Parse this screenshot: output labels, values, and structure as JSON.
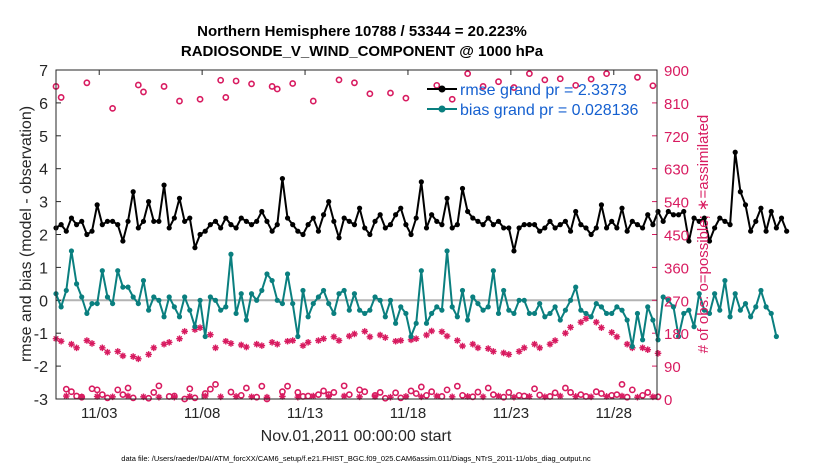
{
  "chart_data": {
    "type": "line",
    "title_line1": "Northern Hemisphere 10788 / 53344 = 20.223%",
    "title_line2": "RADIOSONDE_V_WIND_COMPONENT @ 1000 hPa",
    "xlabel": "Nov.01,2011 00:00:00 start",
    "ylabel_left": "rmse and bias (model - observation)",
    "ylabel_right": "# of obs: o=possible; ∗=assimilated",
    "footer": "data file: /Users/raeder/DAI/ATM_forcXX/CAM6_setup/f.e21.FHIST_BGC.f09_025.CAM6assim.011/Diags_NTrS_2011-11/obs_diag_output.nc",
    "xlim_days": [
      0.9,
      30.1
    ],
    "x_ticks": [
      {
        "day": 3,
        "label": "11/03"
      },
      {
        "day": 8,
        "label": "11/08"
      },
      {
        "day": 13,
        "label": "11/13"
      },
      {
        "day": 18,
        "label": "11/18"
      },
      {
        "day": 23,
        "label": "11/23"
      },
      {
        "day": 28,
        "label": "11/28"
      }
    ],
    "ylim_left": [
      -3,
      7
    ],
    "yticks_left": [
      "-3",
      "-2",
      "-1",
      "0",
      "1",
      "2",
      "3",
      "4",
      "5",
      "6",
      "7"
    ],
    "ylim_right": [
      0,
      900
    ],
    "yticks_right": [
      "0",
      "90",
      "180",
      "270",
      "360",
      "450",
      "540",
      "630",
      "720",
      "810",
      "900"
    ],
    "colors": {
      "rmse": "#000000",
      "bias": "#0a7f7f",
      "obs": "#d81b60",
      "zero_line": "#b3b3b3",
      "legend_text": "#1560d0"
    },
    "legend": {
      "placement": "top-right",
      "entries": [
        {
          "label": "rmse grand pr = 2.3373",
          "series": "rmse"
        },
        {
          "label": "bias grand pr = 0.028136",
          "series": "bias"
        }
      ]
    },
    "x_start_day": 0.9,
    "x_step_day": 0.25,
    "series": [
      {
        "name": "rmse",
        "axis": "left",
        "values": [
          2.2,
          2.3,
          2.1,
          2.5,
          2.3,
          2.4,
          2.0,
          2.1,
          2.9,
          2.3,
          2.4,
          2.4,
          2.3,
          1.8,
          2.4,
          3.3,
          2.2,
          2.4,
          3.0,
          2.4,
          2.4,
          3.5,
          2.2,
          2.5,
          3.1,
          2.4,
          2.5,
          1.6,
          2.0,
          2.1,
          2.3,
          2.4,
          2.2,
          2.5,
          2.3,
          2.2,
          2.5,
          2.4,
          2.3,
          2.4,
          2.7,
          2.4,
          2.1,
          2.3,
          3.7,
          2.5,
          2.3,
          2.1,
          2.0,
          2.3,
          2.5,
          2.1,
          2.6,
          3.0,
          2.4,
          1.9,
          2.5,
          2.4,
          2.3,
          2.8,
          2.2,
          2.0,
          2.4,
          2.6,
          2.2,
          2.3,
          2.6,
          2.8,
          2.3,
          2.0,
          2.5,
          3.6,
          2.2,
          2.6,
          2.4,
          2.3,
          3.1,
          2.2,
          2.3,
          3.4,
          2.7,
          2.5,
          2.4,
          2.3,
          2.5,
          2.3,
          2.4,
          2.2,
          2.2,
          1.5,
          2.2,
          2.3,
          2.3,
          2.3,
          2.1,
          2.2,
          2.4,
          2.2,
          2.3,
          2.4,
          2.1,
          2.7,
          2.3,
          2.2,
          2.0,
          2.2,
          2.9,
          2.2,
          2.4,
          2.2,
          2.8,
          2.1,
          2.4,
          2.3,
          2.2,
          2.6,
          2.3,
          2.7,
          2.4,
          2.7,
          2.6,
          2.6,
          2.7,
          1.8,
          2.5,
          2.4,
          2.5,
          1.8,
          2.2,
          2.5,
          2.4,
          2.3,
          4.5,
          3.3,
          2.9,
          2.1,
          2.4,
          2.8,
          2.1,
          2.7,
          2.2,
          2.5,
          2.1
        ]
      },
      {
        "name": "bias",
        "axis": "left",
        "values": [
          0.2,
          -0.2,
          0.3,
          1.5,
          0.5,
          0.1,
          -0.4,
          -0.1,
          -0.1,
          0.9,
          0.1,
          -0.1,
          0.9,
          0.4,
          0.4,
          0.1,
          -0.1,
          0.6,
          -0.3,
          0.1,
          0.0,
          -0.5,
          0.1,
          -0.2,
          -0.5,
          0.1,
          -0.3,
          -0.8,
          0.0,
          -1.1,
          0.1,
          0.0,
          -0.3,
          -0.2,
          1.4,
          -0.4,
          0.2,
          -0.6,
          0.2,
          0.0,
          0.3,
          0.8,
          0.6,
          0.0,
          -0.1,
          0.8,
          -0.1,
          -1.1,
          0.3,
          -0.5,
          -0.1,
          0.1,
          0.3,
          -0.1,
          -0.4,
          0.2,
          0.3,
          -0.3,
          0.2,
          -0.3,
          -0.4,
          -0.3,
          0.1,
          0.0,
          -0.5,
          0.0,
          -0.7,
          -0.2,
          -0.4,
          -1.1,
          -0.7,
          0.9,
          -0.7,
          -0.4,
          -0.2,
          -0.3,
          1.5,
          -0.2,
          -0.5,
          0.3,
          -0.6,
          0.1,
          -0.1,
          -0.3,
          -0.2,
          0.9,
          -0.4,
          0.3,
          -0.3,
          -0.4,
          0.0,
          0.0,
          -0.4,
          -0.4,
          -0.1,
          -0.5,
          -0.4,
          -0.2,
          -0.6,
          -0.3,
          0.0,
          0.4,
          -0.3,
          -0.4,
          -0.5,
          -0.1,
          -0.2,
          -0.4,
          -0.4,
          -0.2,
          -0.3,
          -0.6,
          -1.4,
          -0.4,
          -1.2,
          -0.2,
          -0.6,
          -1.2,
          0.1,
          0.0,
          -0.2,
          -1.1,
          -0.4,
          -0.3,
          -0.8,
          0.2,
          -0.3,
          -0.4,
          0.2,
          -0.3,
          0.6,
          -0.5,
          0.2,
          -0.3,
          -0.1,
          -0.5,
          -0.2,
          0.3,
          -0.2,
          -0.4,
          -1.1
        ]
      },
      {
        "name": "obs possible",
        "axis": "right",
        "marker": "o",
        "values": [
          855,
          825,
          27,
          20,
          8,
          5,
          865,
          28,
          25,
          12,
          3,
          795,
          25,
          12,
          30,
          3,
          859,
          840,
          2,
          18,
          36,
          855,
          7,
          8,
          815,
          0,
          28,
          3,
          820,
          15,
          27,
          40,
          872,
          825,
          19,
          870,
          10,
          30,
          862,
          5,
          35,
          0,
          855,
          848,
          20,
          35,
          863,
          18,
          7,
          8,
          815,
          12,
          22,
          12,
          18,
          873,
          36,
          12,
          865,
          25,
          20,
          835,
          10,
          18,
          2,
          837,
          17,
          3,
          823,
          22,
          15,
          33,
          10,
          20,
          858,
          7,
          25,
          820,
          35,
          10,
          890,
          6,
          19,
          855,
          30,
          12,
          868,
          5,
          18,
          852,
          10,
          8,
          890,
          28,
          11,
          873,
          7,
          17,
          876,
          30,
          18,
          858,
          12,
          7,
          875,
          20,
          15,
          890,
          10,
          12,
          40,
          5,
          25,
          880,
          10,
          18,
          857,
          6,
          20,
          835,
          4,
          9,
          855,
          4,
          22,
          828,
          40,
          8,
          780,
          15,
          34,
          845,
          28,
          3,
          858,
          30,
          20,
          872,
          18,
          822,
          5
        ]
      },
      {
        "name": "obs assimilated",
        "axis": "right",
        "marker": "*",
        "values": [
          165,
          158,
          8,
          150,
          140,
          6,
          160,
          152,
          7,
          140,
          128,
          6,
          130,
          118,
          8,
          116,
          110,
          6,
          122,
          140,
          5,
          150,
          155,
          5,
          165,
          185,
          7,
          190,
          195,
          8,
          176,
          140,
          6,
          158,
          152,
          7,
          148,
          142,
          6,
          150,
          146,
          5,
          155,
          150,
          7,
          158,
          160,
          5,
          146,
          155,
          8,
          160,
          165,
          7,
          170,
          160,
          8,
          172,
          178,
          6,
          185,
          170,
          7,
          175,
          168,
          5,
          158,
          160,
          7,
          162,
          165,
          6,
          175,
          186,
          8,
          184,
          172,
          6,
          160,
          145,
          7,
          150,
          140,
          6,
          138,
          130,
          8,
          126,
          122,
          5,
          130,
          140,
          7,
          150,
          140,
          6,
          150,
          160,
          8,
          180,
          196,
          7,
          210,
          220,
          6,
          210,
          195,
          7,
          182,
          170,
          8,
          150,
          140,
          5,
          140,
          135,
          6,
          125,
          150,
          7,
          145,
          165,
          5,
          155,
          140,
          6,
          140,
          150,
          8,
          152,
          160,
          6,
          155,
          158,
          5,
          160,
          165,
          7,
          6
        ]
      }
    ]
  }
}
